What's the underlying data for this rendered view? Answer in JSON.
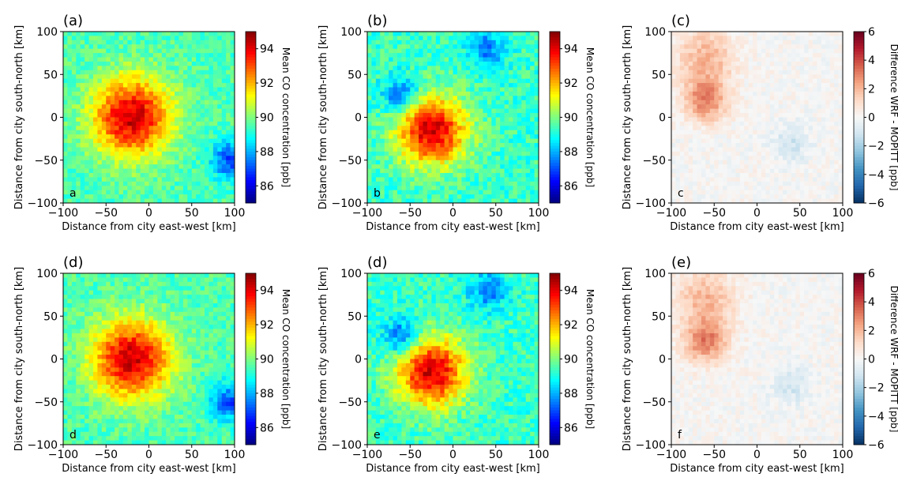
{
  "chart_data": [
    {
      "type": "heatmap",
      "panel_label": "(a)",
      "corner_label": "a",
      "xlabel": "Distance from city east-west [km]",
      "ylabel": "Distance from city south-north [km]",
      "xlim": [
        -100,
        100
      ],
      "ylim": [
        -100,
        100
      ],
      "xticks": [
        "−100",
        "−50",
        "0",
        "50",
        "100"
      ],
      "yticks": [
        "100",
        "50",
        "0",
        "−50",
        "−100"
      ],
      "colorbar": {
        "label": "Mean CO concentration [ppb]",
        "range": [
          85,
          95
        ],
        "ticks": [
          "94",
          "92",
          "90",
          "88",
          "86"
        ],
        "colormap": "jet"
      },
      "field": {
        "background": 89.5,
        "hotspots": [
          {
            "x": -20,
            "y": 0,
            "peak": 94.3,
            "radius_km": 45
          }
        ],
        "lows": [
          {
            "x": 95,
            "y": -50,
            "value": 87.0
          }
        ],
        "noise": 0.6
      }
    },
    {
      "type": "heatmap",
      "panel_label": "(b)",
      "corner_label": "b",
      "xlabel": "Distance from city east-west [km]",
      "ylabel": "Distance from city south-north [km]",
      "xlim": [
        -100,
        100
      ],
      "ylim": [
        -100,
        100
      ],
      "xticks": [
        "−100",
        "−50",
        "0",
        "50",
        "100"
      ],
      "yticks": [
        "100",
        "50",
        "0",
        "−50",
        "−100"
      ],
      "colorbar": {
        "label": "Mean CO concentration [ppb]",
        "range": [
          85,
          95
        ],
        "ticks": [
          "94",
          "92",
          "90",
          "88",
          "86"
        ],
        "colormap": "jet"
      },
      "field": {
        "background": 89.3,
        "hotspots": [
          {
            "x": -25,
            "y": -15,
            "peak": 94.2,
            "radius_km": 40
          }
        ],
        "lows": [
          {
            "x": -60,
            "y": 25,
            "value": 87.0
          },
          {
            "x": 40,
            "y": 80,
            "value": 87.5
          }
        ],
        "noise": 0.7
      }
    },
    {
      "type": "heatmap",
      "panel_label": "(c)",
      "corner_label": "c",
      "xlabel": "Distance from city east-west [km]",
      "ylabel": "Distance from city south-north [km]",
      "xlim": [
        -100,
        100
      ],
      "ylim": [
        -100,
        100
      ],
      "xticks": [
        "−100",
        "−50",
        "0",
        "50",
        "100"
      ],
      "yticks": [
        "100",
        "50",
        "0",
        "−50",
        "−100"
      ],
      "colorbar": {
        "label": "Difference WRF - MOPITT [ppb]",
        "range": [
          -6,
          6
        ],
        "ticks": [
          "6",
          "4",
          "2",
          "0",
          "−2",
          "−4",
          "−6"
        ],
        "colormap": "RdBu_r"
      },
      "field": {
        "background": 0.0,
        "hotspots": [
          {
            "x": -60,
            "y": 20,
            "peak": 3.0,
            "radius_km": 25
          },
          {
            "x": -60,
            "y": 70,
            "peak": 2.0,
            "radius_km": 35
          }
        ],
        "lows": [
          {
            "x": 40,
            "y": -30,
            "value": -1.2
          }
        ],
        "noise": 0.5
      }
    },
    {
      "type": "heatmap",
      "panel_label": "(d)",
      "corner_label": "d",
      "xlabel": "Distance from city east-west [km]",
      "ylabel": "Distance from city south-north [km]",
      "xlim": [
        -100,
        100
      ],
      "ylim": [
        -100,
        100
      ],
      "xticks": [
        "−100",
        "−50",
        "0",
        "50",
        "100"
      ],
      "yticks": [
        "100",
        "50",
        "0",
        "−50",
        "−100"
      ],
      "colorbar": {
        "label": "Mean CO concentration [ppb]",
        "range": [
          85,
          95
        ],
        "ticks": [
          "94",
          "92",
          "90",
          "88",
          "86"
        ],
        "colormap": "jet"
      },
      "field": {
        "background": 89.5,
        "hotspots": [
          {
            "x": -20,
            "y": 0,
            "peak": 94.3,
            "radius_km": 45
          }
        ],
        "lows": [
          {
            "x": 95,
            "y": -50,
            "value": 87.0
          }
        ],
        "noise": 0.6
      }
    },
    {
      "type": "heatmap",
      "panel_label": "(d)",
      "corner_label": "e",
      "xlabel": "Distance from city east-west [km]",
      "ylabel": "Distance from city south-north [km]",
      "xlim": [
        -100,
        100
      ],
      "ylim": [
        -100,
        100
      ],
      "xticks": [
        "−100",
        "−50",
        "0",
        "50",
        "100"
      ],
      "yticks": [
        "100",
        "50",
        "0",
        "−50",
        "−100"
      ],
      "colorbar": {
        "label": "Mean CO concentration [ppb]",
        "range": [
          85,
          95
        ],
        "ticks": [
          "94",
          "92",
          "90",
          "88",
          "86"
        ],
        "colormap": "jet"
      },
      "field": {
        "background": 89.3,
        "hotspots": [
          {
            "x": -25,
            "y": -15,
            "peak": 94.2,
            "radius_km": 40
          }
        ],
        "lows": [
          {
            "x": -60,
            "y": 25,
            "value": 87.0
          },
          {
            "x": 40,
            "y": 80,
            "value": 87.5
          }
        ],
        "noise": 0.7
      }
    },
    {
      "type": "heatmap",
      "panel_label": "(e)",
      "corner_label": "f",
      "xlabel": "Distance from city east-west [km]",
      "ylabel": "Distance from city south-north [km]",
      "xlim": [
        -100,
        100
      ],
      "ylim": [
        -100,
        100
      ],
      "xticks": [
        "−100",
        "−50",
        "0",
        "50",
        "100"
      ],
      "yticks": [
        "100",
        "50",
        "0",
        "−50",
        "−100"
      ],
      "colorbar": {
        "label": "Difference WRF - MOPITT [ppb]",
        "range": [
          -6,
          6
        ],
        "ticks": [
          "6",
          "4",
          "2",
          "0",
          "−2",
          "−4",
          "−6"
        ],
        "colormap": "RdBu_r"
      },
      "field": {
        "background": 0.0,
        "hotspots": [
          {
            "x": -60,
            "y": 20,
            "peak": 3.0,
            "radius_km": 25
          },
          {
            "x": -60,
            "y": 70,
            "peak": 2.0,
            "radius_km": 35
          }
        ],
        "lows": [
          {
            "x": 40,
            "y": -30,
            "value": -1.2
          }
        ],
        "noise": 0.5
      }
    }
  ]
}
